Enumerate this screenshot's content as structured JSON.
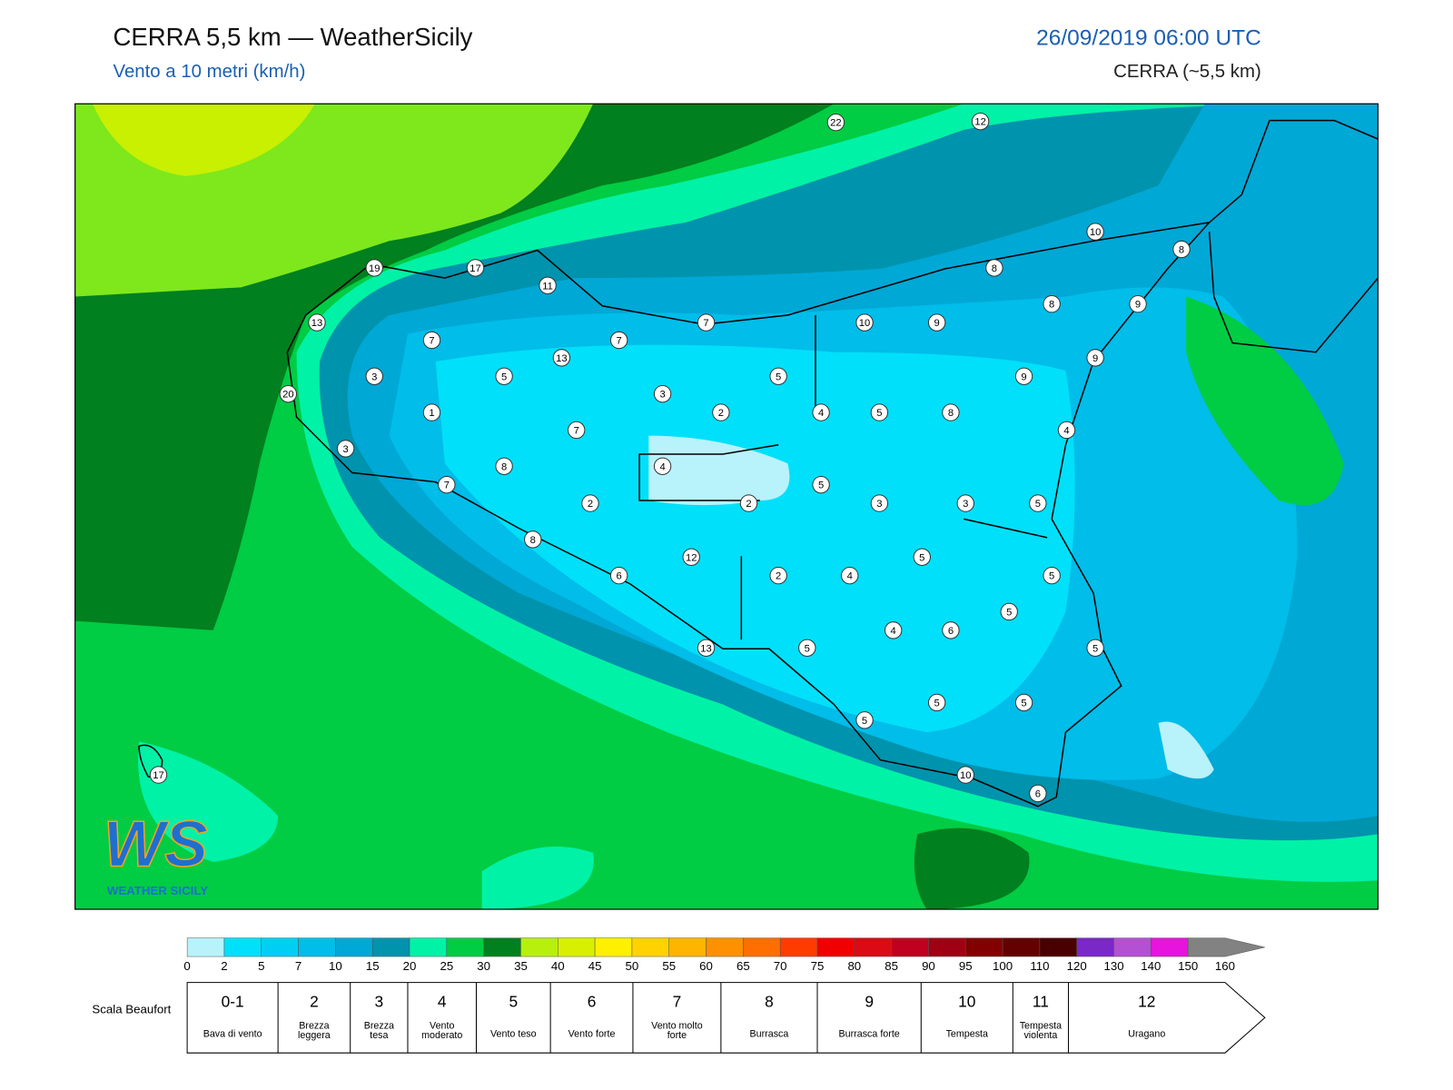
{
  "header": {
    "title": "CERRA 5,5 km — WeatherSicily",
    "subtitle": "Vento a 10 metri (km/h)",
    "datetime": "26/09/2019 06:00 UTC",
    "model": "CERRA (~5,5 km)"
  },
  "map": {
    "stations": [
      22,
      12,
      10,
      8,
      19,
      17,
      11,
      8,
      13,
      7,
      10,
      9,
      8,
      9,
      7,
      7,
      13,
      9,
      3,
      5,
      5,
      9,
      20,
      3,
      1,
      2,
      4,
      5,
      8,
      4,
      3,
      7,
      8,
      4,
      7,
      5,
      2,
      2,
      3,
      3,
      5,
      8,
      5,
      12,
      6,
      2,
      4,
      5,
      5,
      4,
      6,
      13,
      5,
      5,
      5,
      5,
      5,
      10,
      6,
      17
    ]
  },
  "logo": {
    "mark": "WS",
    "text": "WEATHER SICILY"
  },
  "colorbar": {
    "ticks": [
      0,
      2,
      5,
      7,
      10,
      15,
      20,
      25,
      30,
      35,
      40,
      45,
      50,
      55,
      60,
      65,
      70,
      75,
      80,
      85,
      90,
      95,
      100,
      110,
      120,
      130,
      140,
      150,
      160
    ],
    "colors": [
      "#b8f2fb",
      "#00e0fa",
      "#00cff3",
      "#00bde9",
      "#00a8d6",
      "#0093ad",
      "#00f2a6",
      "#00cc44",
      "#00801e",
      "#b6f00c",
      "#d8f000",
      "#fff000",
      "#ffd200",
      "#ffb400",
      "#ff9000",
      "#ff6e00",
      "#ff3c00",
      "#f00000",
      "#dc0a14",
      "#c0001e",
      "#a00014",
      "#820000",
      "#640000",
      "#4a0000",
      "#7a28c8",
      "#b450d2",
      "#e614dc",
      "#828282",
      "#5a5a5a",
      "#000000",
      "#8c4a28",
      "#d08c50"
    ]
  },
  "beaufort": {
    "label": "Scala Beaufort",
    "levels": [
      {
        "force": "0-1",
        "name": "Bava di vento"
      },
      {
        "force": "2",
        "name": "Brezza leggera"
      },
      {
        "force": "3",
        "name": "Brezza tesa"
      },
      {
        "force": "4",
        "name": "Vento moderato"
      },
      {
        "force": "5",
        "name": "Vento teso"
      },
      {
        "force": "6",
        "name": "Vento forte"
      },
      {
        "force": "7",
        "name": "Vento molto forte"
      },
      {
        "force": "8",
        "name": "Burrasca"
      },
      {
        "force": "9",
        "name": "Burrasca forte"
      },
      {
        "force": "10",
        "name": "Tempesta"
      },
      {
        "force": "11",
        "name": "Tempesta violenta"
      },
      {
        "force": "12",
        "name": "Uragano"
      }
    ]
  }
}
